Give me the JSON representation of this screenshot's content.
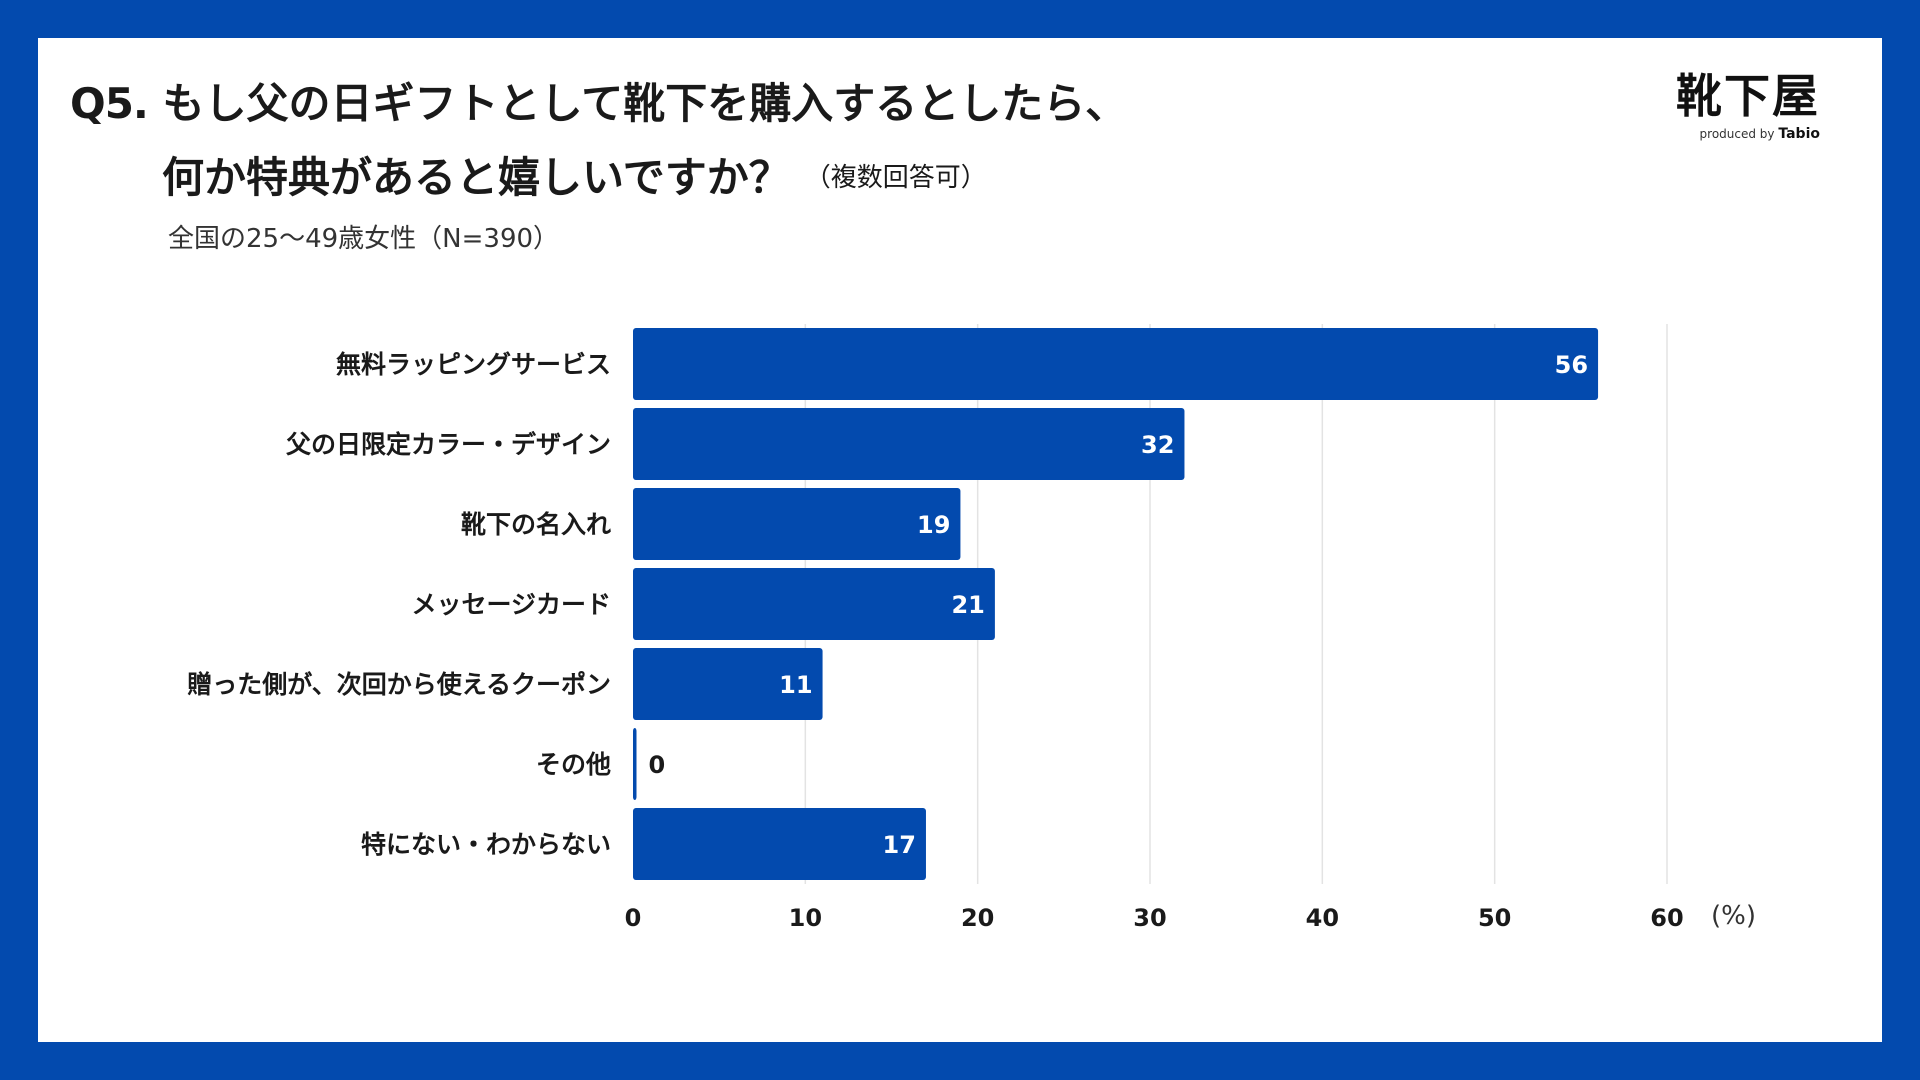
{
  "header": {
    "title_q": "Q5.",
    "title_line1": "もし父の日ギフトとして靴下を購入するとしたら、",
    "title_line2": "何か特典があると嬉しいですか？",
    "title_note": "（複数回答可）",
    "subtitle": "全国の25～49歳女性（N=390）"
  },
  "logo": {
    "main": "靴下屋",
    "produced_by": "produced by",
    "brand": "Tabio"
  },
  "colors": {
    "bar": "#034aae",
    "background": "#034aae",
    "grid": "#e3e3e3",
    "value_inside": "#ffffff",
    "value_outside": "#1a1a1a"
  },
  "chart_data": {
    "type": "bar",
    "orientation": "horizontal",
    "title": "Q5. もし父の日ギフトとして靴下を購入するとしたら、何か特典があると嬉しいですか？（複数回答可）",
    "categories": [
      "無料ラッピングサービス",
      "父の日限定カラー・デザイン",
      "靴下の名入れ",
      "メッセージカード",
      "贈った側が、次回から使えるクーポン",
      "その他",
      "特にない・わからない"
    ],
    "values": [
      56,
      32,
      19,
      21,
      11,
      0,
      17
    ],
    "xlim": [
      0,
      60
    ],
    "ticks": [
      0,
      10,
      20,
      30,
      40,
      50,
      60
    ],
    "unit": "(%)",
    "grid": true,
    "xlabel": "",
    "ylabel": ""
  }
}
